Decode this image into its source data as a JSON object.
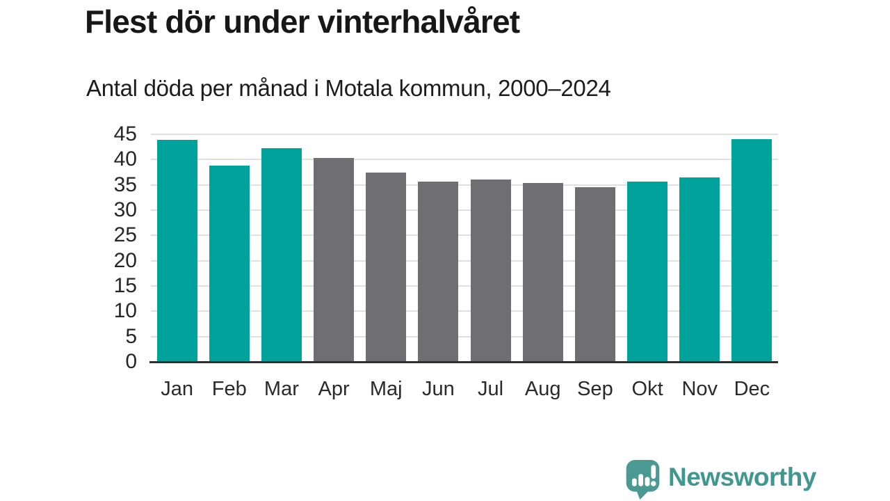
{
  "chart_data": {
    "type": "bar",
    "title": "Flest dör under vinterhalvåret",
    "subtitle": "Antal döda per månad i Motala kommun, 2000–2024",
    "categories": [
      "Jan",
      "Feb",
      "Mar",
      "Apr",
      "Maj",
      "Jun",
      "Jul",
      "Aug",
      "Sep",
      "Okt",
      "Nov",
      "Dec"
    ],
    "values": [
      43.9,
      38.8,
      42.2,
      40.3,
      37.4,
      35.6,
      36.0,
      35.4,
      34.5,
      35.7,
      36.5,
      44.1
    ],
    "bar_color_keys": [
      "teal",
      "teal",
      "teal",
      "gray",
      "gray",
      "gray",
      "gray",
      "gray",
      "gray",
      "teal",
      "teal",
      "teal"
    ],
    "colors": {
      "teal": "#00a39b",
      "gray": "#6f6f73",
      "gridline": "#e0e0e0",
      "axis": "#2e2e2e"
    },
    "xlabel": "",
    "ylabel": "",
    "ylim": [
      0,
      45
    ],
    "yticks": [
      0,
      5,
      10,
      15,
      20,
      25,
      30,
      35,
      40,
      45
    ],
    "grid": "horizontal",
    "legend": "none"
  },
  "branding": {
    "name": "Newsworthy",
    "icon": "bar-chart-speech-bubble-icon",
    "icon_color": "#4a9a93",
    "text_color": "#3f978f"
  }
}
